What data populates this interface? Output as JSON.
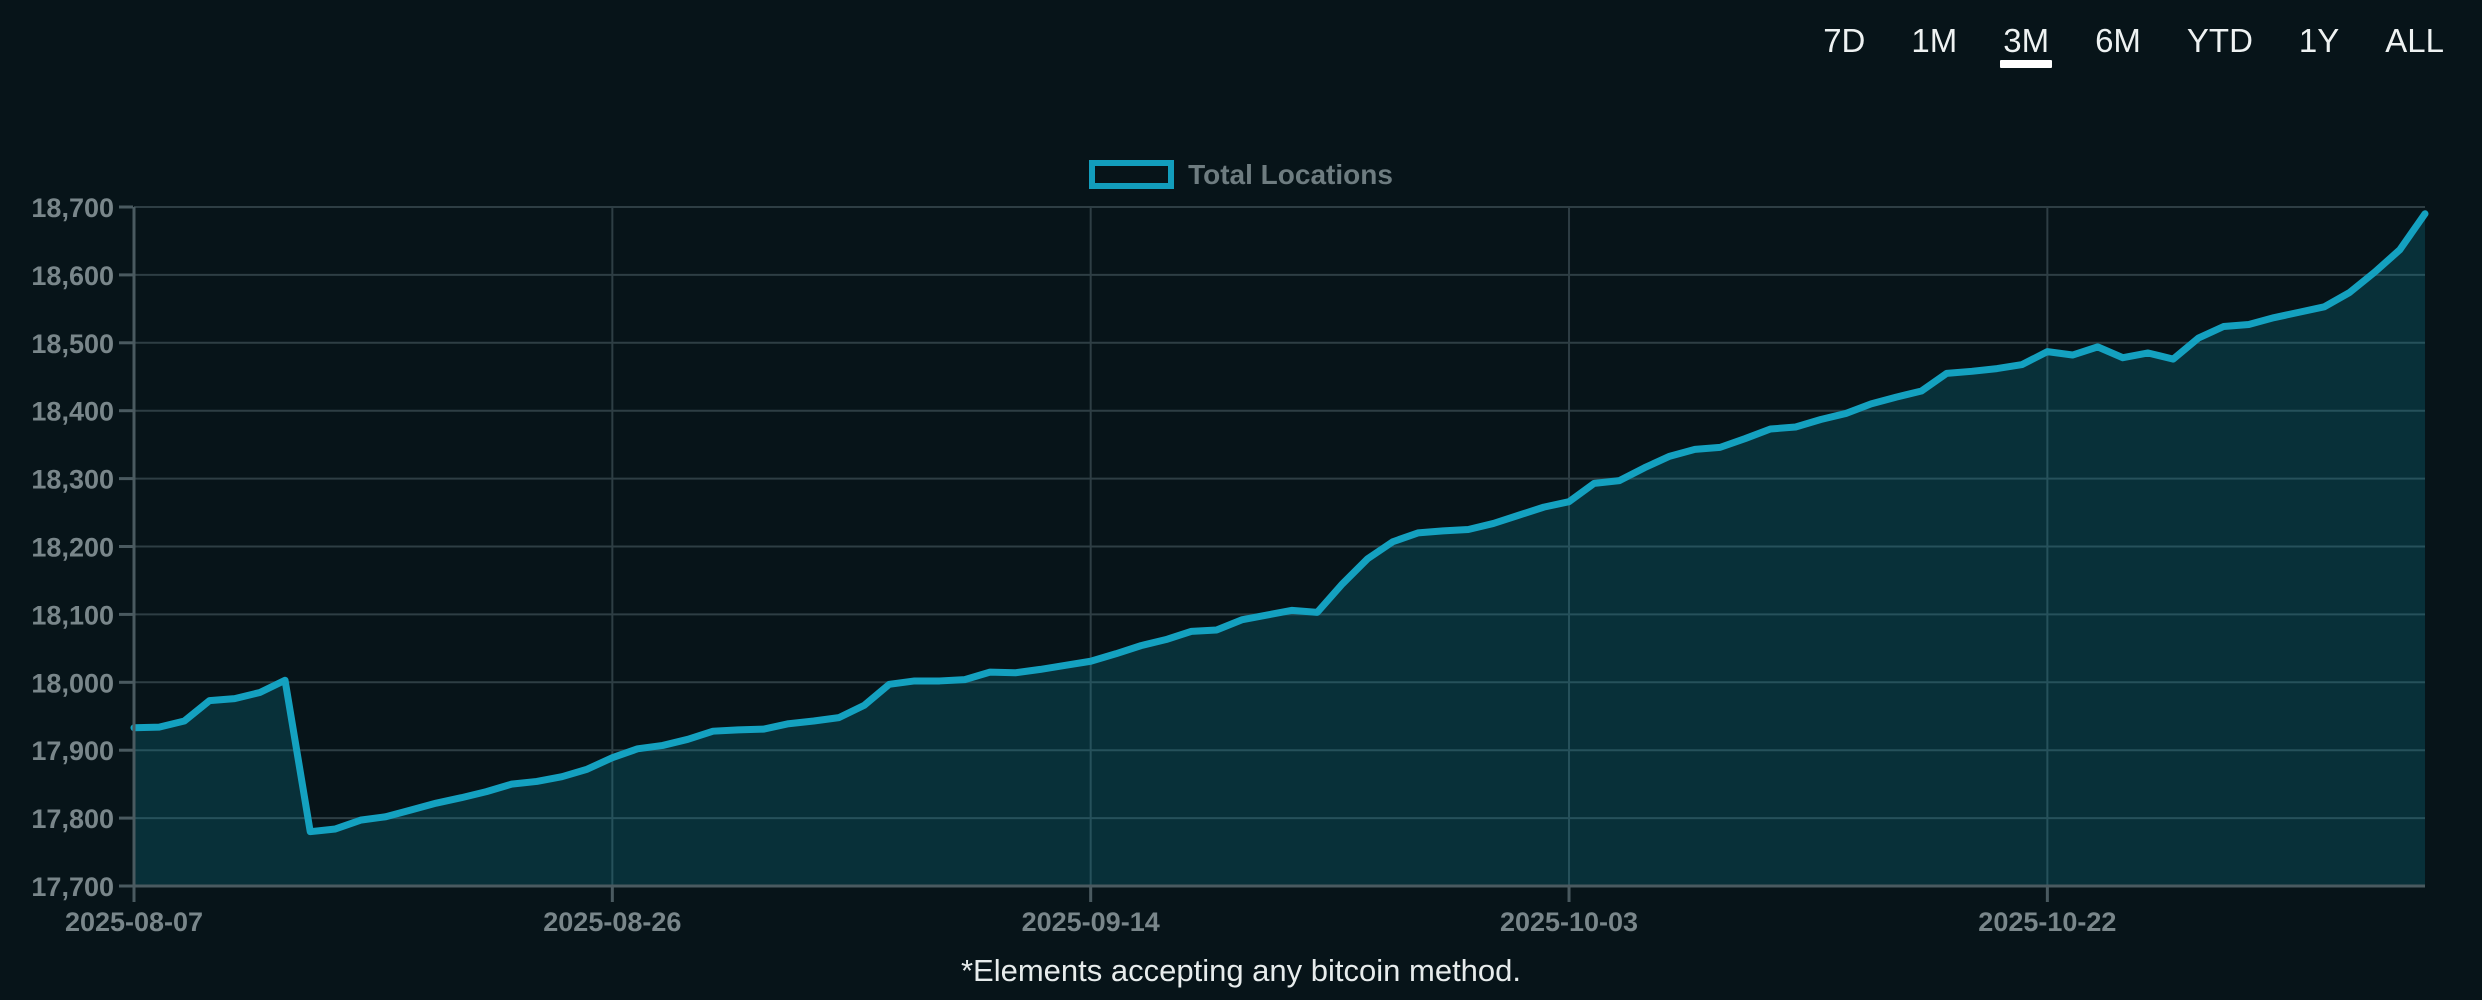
{
  "page": {
    "background": "#071419",
    "caption": "*Elements accepting any bitcoin method."
  },
  "tabs": {
    "items": [
      {
        "label": "7D",
        "active": false
      },
      {
        "label": "1M",
        "active": false
      },
      {
        "label": "3M",
        "active": true
      },
      {
        "label": "6M",
        "active": false
      },
      {
        "label": "YTD",
        "active": false
      },
      {
        "label": "1Y",
        "active": false
      },
      {
        "label": "ALL",
        "active": false
      }
    ]
  },
  "legend": {
    "label": "Total Locations",
    "swatch_color": "#129dbc"
  },
  "chart_data": {
    "type": "area",
    "title": "",
    "legend_entries": [
      "Total Locations"
    ],
    "legend_position": "top-center",
    "grid": true,
    "ylim": [
      17700,
      18700
    ],
    "y_tick_values": [
      18700,
      18600,
      18500,
      18400,
      18300,
      18200,
      18100,
      18000,
      17900,
      17800,
      17700
    ],
    "y_tick_labels": [
      "18,700",
      "18,600",
      "18,500",
      "18,400",
      "18,300",
      "18,200",
      "18,100",
      "18,000",
      "17,900",
      "17,800",
      "17,700"
    ],
    "x_tick_labels": [
      "2025-08-07",
      "2025-08-26",
      "2025-09-14",
      "2025-10-03",
      "2025-10-22"
    ],
    "x_tick_indices": [
      0,
      19,
      38,
      57,
      76
    ],
    "line_color": "#14a1c0",
    "fill_color": "rgba(14, 150, 173, 0.22)",
    "grid_color": "#2e3e44",
    "axis_color": "#4a5a60",
    "tick_label_color": "#79868a",
    "x": [
      "2025-08-07",
      "2025-08-08",
      "2025-08-09",
      "2025-08-10",
      "2025-08-11",
      "2025-08-12",
      "2025-08-13",
      "2025-08-14",
      "2025-08-15",
      "2025-08-16",
      "2025-08-17",
      "2025-08-18",
      "2025-08-19",
      "2025-08-20",
      "2025-08-21",
      "2025-08-22",
      "2025-08-23",
      "2025-08-24",
      "2025-08-25",
      "2025-08-26",
      "2025-08-27",
      "2025-08-28",
      "2025-08-29",
      "2025-08-30",
      "2025-08-31",
      "2025-09-01",
      "2025-09-02",
      "2025-09-03",
      "2025-09-04",
      "2025-09-05",
      "2025-09-06",
      "2025-09-07",
      "2025-09-08",
      "2025-09-09",
      "2025-09-10",
      "2025-09-11",
      "2025-09-12",
      "2025-09-13",
      "2025-09-14",
      "2025-09-15",
      "2025-09-16",
      "2025-09-17",
      "2025-09-18",
      "2025-09-19",
      "2025-09-20",
      "2025-09-21",
      "2025-09-22",
      "2025-09-23",
      "2025-09-24",
      "2025-09-25",
      "2025-09-26",
      "2025-09-27",
      "2025-09-28",
      "2025-09-29",
      "2025-09-30",
      "2025-10-01",
      "2025-10-02",
      "2025-10-03",
      "2025-10-04",
      "2025-10-05",
      "2025-10-06",
      "2025-10-07",
      "2025-10-08",
      "2025-10-09",
      "2025-10-10",
      "2025-10-11",
      "2025-10-12",
      "2025-10-13",
      "2025-10-14",
      "2025-10-15",
      "2025-10-16",
      "2025-10-17",
      "2025-10-18",
      "2025-10-19",
      "2025-10-20",
      "2025-10-21",
      "2025-10-22",
      "2025-10-23",
      "2025-10-24",
      "2025-10-25",
      "2025-10-26",
      "2025-10-27",
      "2025-10-28",
      "2025-10-29",
      "2025-10-30",
      "2025-10-31",
      "2025-11-01",
      "2025-11-02",
      "2025-11-03",
      "2025-11-04",
      "2025-11-05",
      "2025-11-06"
    ],
    "series": [
      {
        "name": "Total Locations",
        "values": [
          17933,
          17934,
          17943,
          17973,
          17976,
          17985,
          18003,
          17780,
          17784,
          17797,
          17802,
          17812,
          17822,
          17830,
          17839,
          17850,
          17854,
          17861,
          17872,
          17889,
          17902,
          17907,
          17916,
          17928,
          17930,
          17931,
          17939,
          17943,
          17948,
          17966,
          17997,
          18002,
          18002,
          18004,
          18015,
          18014,
          18019,
          18025,
          18031,
          18042,
          18054,
          18063,
          18075,
          18077,
          18092,
          18099,
          18106,
          18103,
          18145,
          18182,
          18207,
          18220,
          18223,
          18225,
          18234,
          18246,
          18258,
          18266,
          18293,
          18297,
          18316,
          18333,
          18343,
          18346,
          18359,
          18373,
          18376,
          18387,
          18396,
          18410,
          18420,
          18429,
          18455,
          18458,
          18462,
          18468,
          18487,
          18482,
          18494,
          18478,
          18485,
          18476,
          18507,
          18524,
          18527,
          18537,
          18545,
          18553,
          18574,
          18604,
          18637,
          18690
        ]
      }
    ]
  }
}
